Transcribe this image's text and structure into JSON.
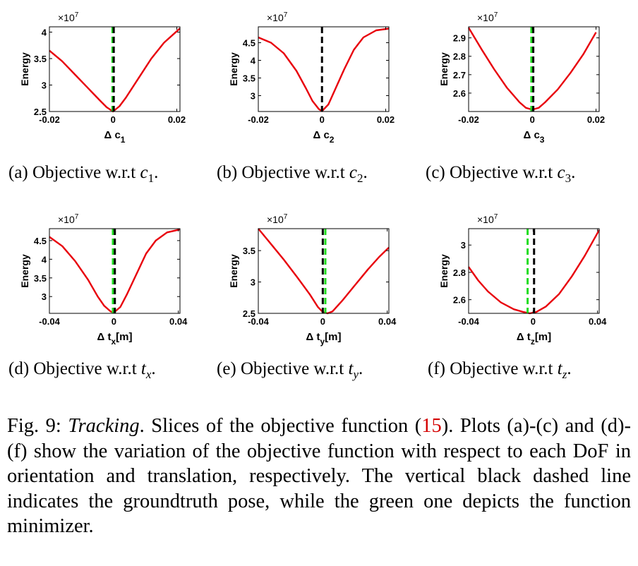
{
  "colors": {
    "curve": "#e8000b",
    "groundtruth": "#000000",
    "minimizer": "#22dd22"
  },
  "charts": [
    {
      "id": "a",
      "type": "line",
      "multiplier": "×10",
      "exponent": "7",
      "ylabel": "Energy",
      "xlabel": "Δ c",
      "xsub": "1",
      "xlim": [
        -0.02,
        0.021
      ],
      "xticks": [
        {
          "v": -0.02,
          "t": "-0.02"
        },
        {
          "v": 0,
          "t": "0"
        },
        {
          "v": 0.02,
          "t": "0.02"
        }
      ],
      "ylim": [
        2.5,
        4.1
      ],
      "yticks": [
        {
          "v": 2.5,
          "t": "2.5"
        },
        {
          "v": 3,
          "t": "3"
        },
        {
          "v": 3.5,
          "t": "3.5"
        },
        {
          "v": 4,
          "t": "4"
        }
      ],
      "groundtruth_x": 0.0002,
      "minimizer_x": -0.0002,
      "x": [
        -0.02,
        -0.016,
        -0.012,
        -0.008,
        -0.004,
        -0.002,
        0,
        0.002,
        0.004,
        0.008,
        0.012,
        0.016,
        0.021
      ],
      "y": [
        3.65,
        3.45,
        3.2,
        2.95,
        2.7,
        2.58,
        2.5,
        2.6,
        2.76,
        3.13,
        3.5,
        3.8,
        4.07
      ]
    },
    {
      "id": "b",
      "type": "line",
      "multiplier": "×10",
      "exponent": "7",
      "ylabel": "Energy",
      "xlabel": "Δ c",
      "xsub": "2",
      "xlim": [
        -0.02,
        0.021
      ],
      "xticks": [
        {
          "v": -0.02,
          "t": "-0.02"
        },
        {
          "v": 0,
          "t": "0"
        },
        {
          "v": 0.02,
          "t": "0.02"
        }
      ],
      "ylim": [
        2.55,
        4.95
      ],
      "yticks": [
        {
          "v": 3,
          "t": "3"
        },
        {
          "v": 3.5,
          "t": "3.5"
        },
        {
          "v": 4,
          "t": "4"
        },
        {
          "v": 4.5,
          "t": "4.5"
        }
      ],
      "groundtruth_x": 0.0,
      "minimizer_x": null,
      "x": [
        -0.02,
        -0.016,
        -0.012,
        -0.008,
        -0.005,
        -0.003,
        -0.001,
        0,
        0.002,
        0.004,
        0.007,
        0.01,
        0.013,
        0.017,
        0.021
      ],
      "y": [
        4.65,
        4.5,
        4.2,
        3.7,
        3.2,
        2.85,
        2.62,
        2.56,
        2.75,
        3.15,
        3.75,
        4.3,
        4.65,
        4.85,
        4.9
      ]
    },
    {
      "id": "c",
      "type": "line",
      "multiplier": "×10",
      "exponent": "7",
      "ylabel": "Energy",
      "xlabel": "Δ c",
      "xsub": "3",
      "xlim": [
        -0.02,
        0.021
      ],
      "xticks": [
        {
          "v": -0.02,
          "t": "-0.02"
        },
        {
          "v": 0,
          "t": "0"
        },
        {
          "v": 0.02,
          "t": "0.02"
        }
      ],
      "ylim": [
        2.5,
        2.96
      ],
      "yticks": [
        {
          "v": 2.6,
          "t": "2.6"
        },
        {
          "v": 2.7,
          "t": "2.7"
        },
        {
          "v": 2.8,
          "t": "2.8"
        },
        {
          "v": 2.9,
          "t": "2.9"
        }
      ],
      "groundtruth_x": 0.0003,
      "minimizer_x": -0.0003,
      "x": [
        -0.02,
        -0.016,
        -0.012,
        -0.008,
        -0.004,
        -0.002,
        0,
        0.002,
        0.004,
        0.008,
        0.012,
        0.016,
        0.02
      ],
      "y": [
        2.955,
        2.84,
        2.73,
        2.63,
        2.55,
        2.52,
        2.51,
        2.52,
        2.55,
        2.62,
        2.71,
        2.81,
        2.93
      ]
    },
    {
      "id": "d",
      "type": "line",
      "multiplier": "×10",
      "exponent": "7",
      "ylabel": "Energy",
      "xlabel": "Δ t",
      "xsub": "x",
      "xunit": "[m]",
      "xlim": [
        -0.04,
        0.041
      ],
      "xticks": [
        {
          "v": -0.04,
          "t": "-0.04"
        },
        {
          "v": 0,
          "t": "0"
        },
        {
          "v": 0.04,
          "t": "0.04"
        }
      ],
      "ylim": [
        2.55,
        4.82
      ],
      "yticks": [
        {
          "v": 3,
          "t": "3"
        },
        {
          "v": 3.5,
          "t": "3.5"
        },
        {
          "v": 4,
          "t": "4"
        },
        {
          "v": 4.5,
          "t": "4.5"
        }
      ],
      "groundtruth_x": 0.0006,
      "minimizer_x": -0.0006,
      "x": [
        -0.04,
        -0.032,
        -0.024,
        -0.016,
        -0.01,
        -0.006,
        -0.002,
        0,
        0.004,
        0.008,
        0.014,
        0.02,
        0.026,
        0.033,
        0.041
      ],
      "y": [
        4.6,
        4.35,
        3.95,
        3.45,
        3.0,
        2.75,
        2.6,
        2.57,
        2.72,
        3.05,
        3.6,
        4.15,
        4.5,
        4.72,
        4.8
      ]
    },
    {
      "id": "e",
      "type": "line",
      "multiplier": "×10",
      "exponent": "7",
      "ylabel": "Energy",
      "xlabel": "Δ t",
      "xsub": "y",
      "xunit": "[m]",
      "xlim": [
        -0.04,
        0.041
      ],
      "xticks": [
        {
          "v": -0.04,
          "t": "-0.04"
        },
        {
          "v": 0,
          "t": "0"
        },
        {
          "v": 0.04,
          "t": "0.04"
        }
      ],
      "ylim": [
        2.5,
        3.85
      ],
      "yticks": [
        {
          "v": 2.5,
          "t": "2.5"
        },
        {
          "v": 3,
          "t": "3"
        },
        {
          "v": 3.5,
          "t": "3.5"
        }
      ],
      "groundtruth_x": 0.0,
      "minimizer_x": 0.0016,
      "x": [
        -0.04,
        -0.032,
        -0.024,
        -0.016,
        -0.008,
        -0.003,
        0,
        0.003,
        0.006,
        0.012,
        0.02,
        0.028,
        0.035,
        0.041
      ],
      "y": [
        3.85,
        3.6,
        3.35,
        3.08,
        2.8,
        2.6,
        2.52,
        2.5,
        2.53,
        2.7,
        2.95,
        3.2,
        3.4,
        3.55
      ]
    },
    {
      "id": "f",
      "type": "line",
      "multiplier": "×10",
      "exponent": "7",
      "ylabel": "Energy",
      "xlabel": "Δ t",
      "xsub": "z",
      "xunit": "[m]",
      "xlim": [
        -0.04,
        0.041
      ],
      "xticks": [
        {
          "v": -0.04,
          "t": "-0.04"
        },
        {
          "v": 0,
          "t": "0"
        },
        {
          "v": 0.04,
          "t": "0.04"
        }
      ],
      "ylim": [
        2.5,
        3.12
      ],
      "yticks": [
        {
          "v": 2.6,
          "t": "2.6"
        },
        {
          "v": 2.8,
          "t": "2.8"
        },
        {
          "v": 3,
          "t": "3"
        }
      ],
      "groundtruth_x": 0.0006,
      "minimizer_x": -0.0034,
      "x": [
        -0.04,
        -0.034,
        -0.028,
        -0.02,
        -0.012,
        -0.006,
        -0.002,
        0.002,
        0.008,
        0.016,
        0.024,
        0.032,
        0.041
      ],
      "y": [
        2.84,
        2.74,
        2.66,
        2.58,
        2.53,
        2.51,
        2.5,
        2.51,
        2.55,
        2.64,
        2.77,
        2.92,
        3.11
      ]
    }
  ],
  "subcaptions": [
    {
      "label": "(a)",
      "text": "Objective w.r.t",
      "var": "c",
      "sub": "1",
      "end": "."
    },
    {
      "label": "(b)",
      "text": "Objective w.r.t",
      "var": "c",
      "sub": "2",
      "end": "."
    },
    {
      "label": "(c)",
      "text": "Objective w.r.t",
      "var": "c",
      "sub": "3",
      "end": "."
    },
    {
      "label": "(d)",
      "text": "Objective w.r.t",
      "var": "t",
      "sub": "x",
      "end": "."
    },
    {
      "label": "(e)",
      "text": "Objective w.r.t",
      "var": "t",
      "sub": "y",
      "end": "."
    },
    {
      "label": "(f)",
      "text": "Objective w.r.t",
      "var": "t",
      "sub": "z",
      "end": "."
    }
  ],
  "caption": {
    "fig": "Fig. 9:",
    "italic": "Tracking",
    "part1": ". Slices of the objective function (",
    "ref": "15",
    "part2": "). Plots (a)-(c) and (d)-(f) show the variation of the objective function with respect to each DoF in orientation and translation, respectively. The vertical black dashed line indicates the groundtruth pose, while the green one depicts the function minimizer."
  }
}
